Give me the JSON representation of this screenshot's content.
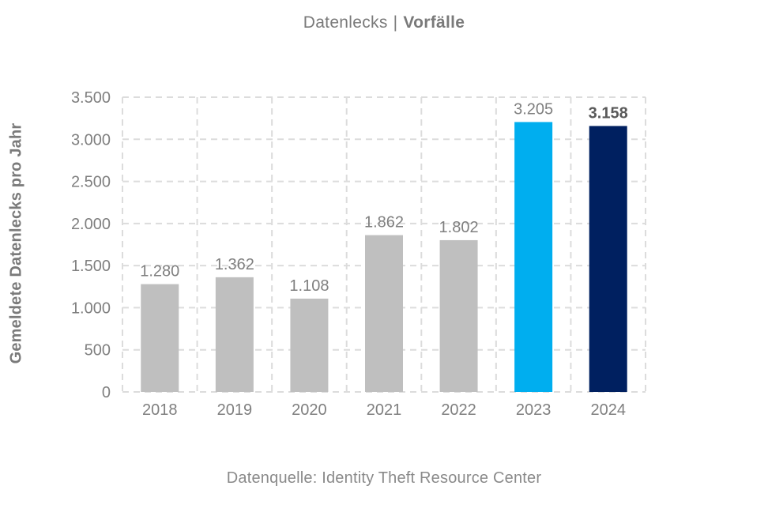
{
  "header": {
    "title_regular": "Datenlecks",
    "separator": "|",
    "title_bold": "Vorfälle"
  },
  "footer": {
    "source": "Datenquelle: Identity Theft Resource Center"
  },
  "palette": {
    "bar_default": "#BFBFBF",
    "bar_highlight_cyan": "#00AEEF",
    "bar_highlight_navy": "#002060",
    "gridline": "#DCDCDC",
    "axis_text": "#7F7F7F",
    "value_label": "#7F7F7F",
    "value_label_bold": "#595959"
  },
  "chart_data": {
    "type": "bar",
    "title": "Datenlecks | Vorfälle",
    "categories": [
      "2018",
      "2019",
      "2020",
      "2021",
      "2022",
      "2023",
      "2024"
    ],
    "values": [
      1280,
      1362,
      1108,
      1862,
      1802,
      3205,
      3158
    ],
    "value_labels": [
      "1.280",
      "1.362",
      "1.108",
      "1.862",
      "1.802",
      "3.205",
      "3.158"
    ],
    "bar_colors": [
      "#BFBFBF",
      "#BFBFBF",
      "#BFBFBF",
      "#BFBFBF",
      "#BFBFBF",
      "#00AEEF",
      "#002060"
    ],
    "bold_value_label_indices": [
      6
    ],
    "xlabel": "",
    "ylabel": "Gemeldete Datenlecks pro Jahr",
    "ylim": [
      0,
      3500
    ],
    "ytick_step": 500,
    "ytick_labels": [
      "0",
      "500",
      "1.000",
      "1.500",
      "2.000",
      "2.500",
      "3.000",
      "3.500"
    ],
    "grid": "dashed",
    "legend": "none"
  }
}
